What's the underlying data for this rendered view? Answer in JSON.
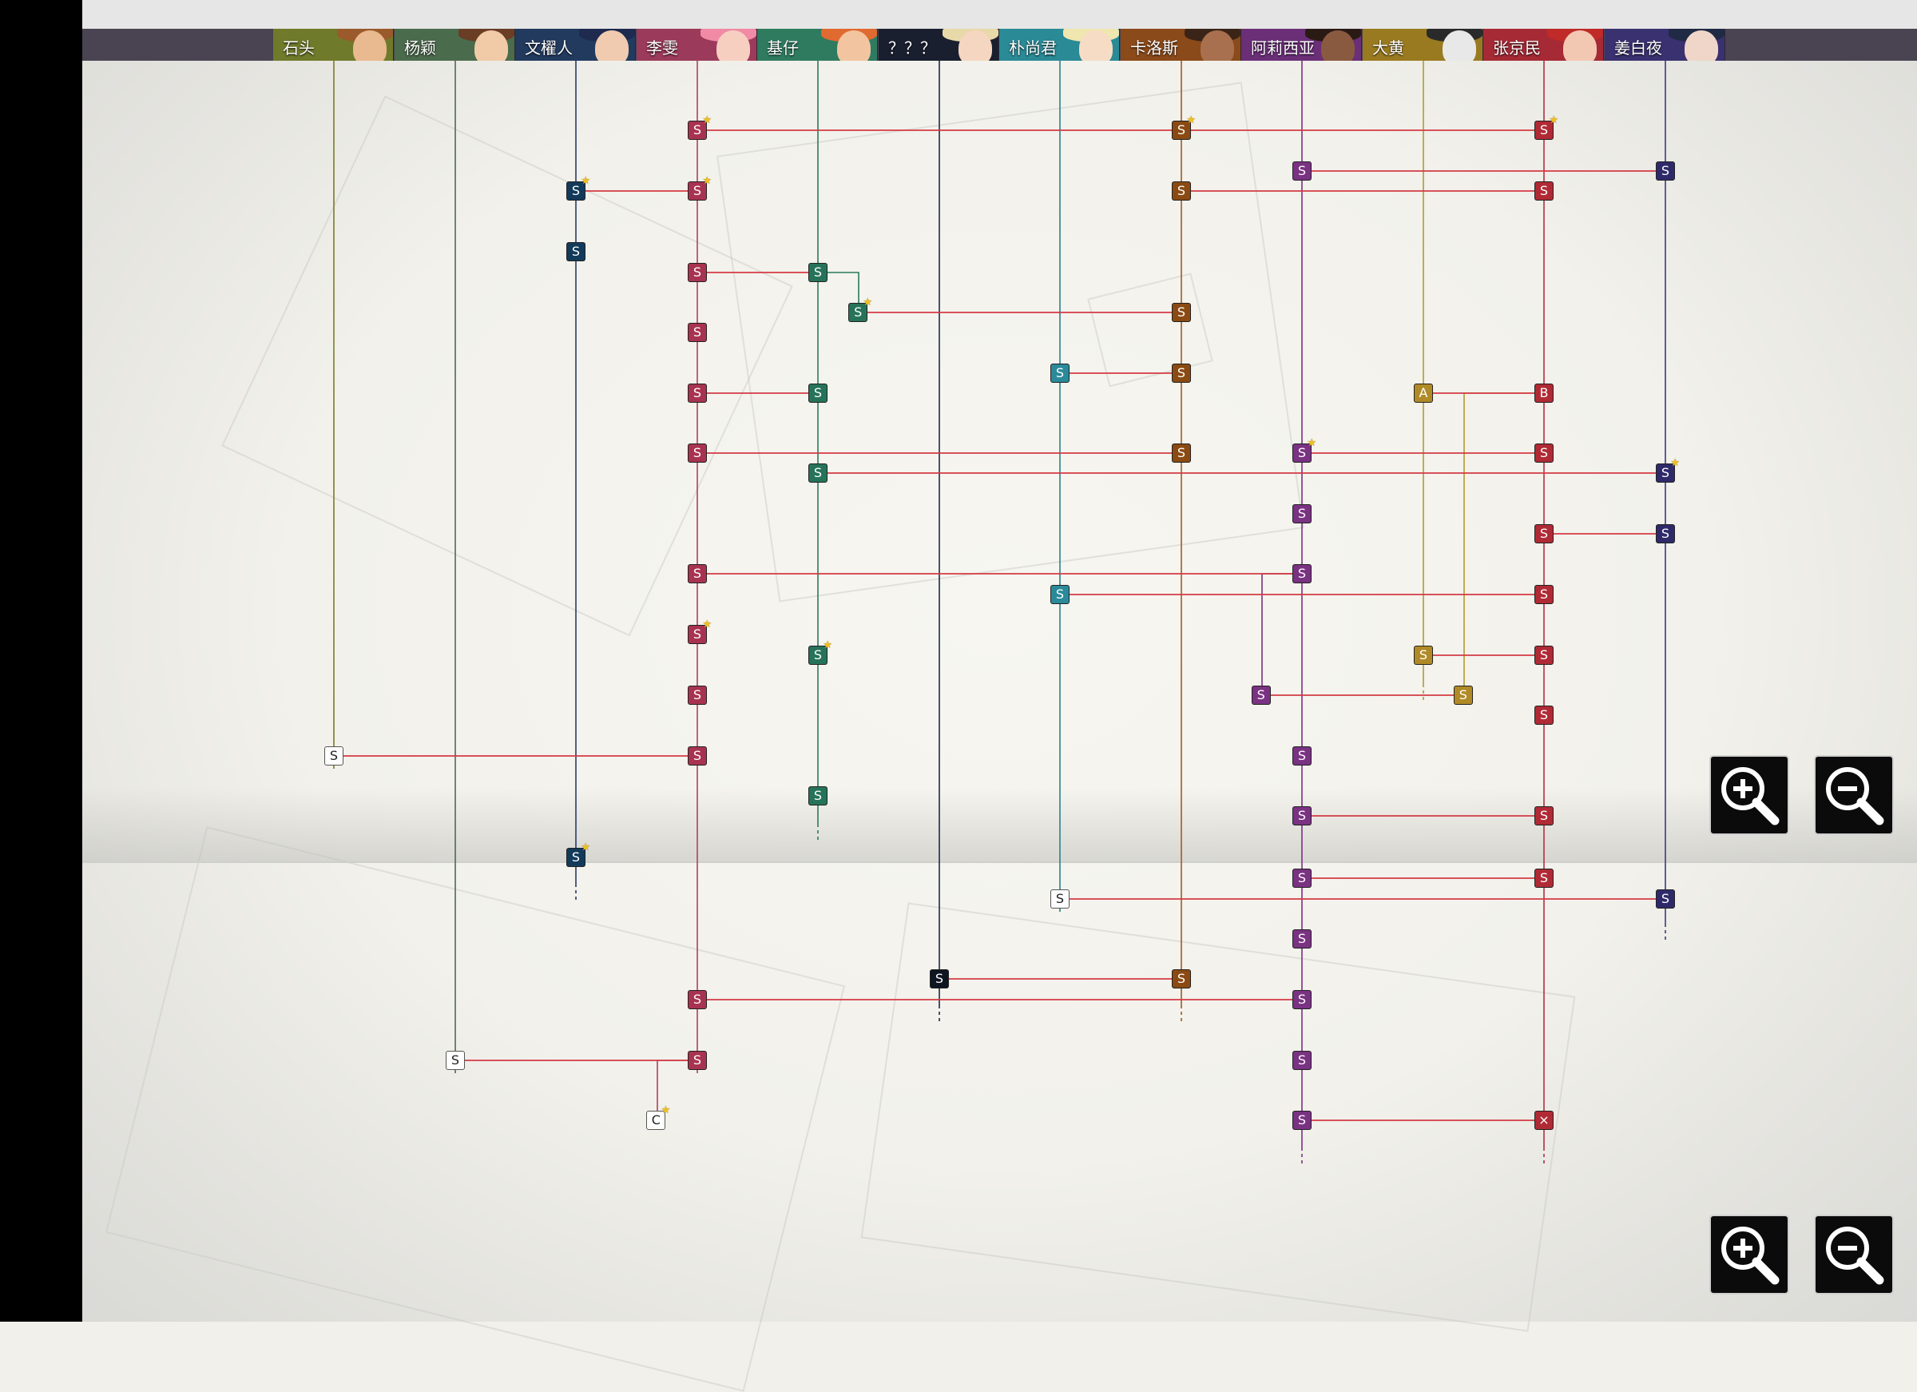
{
  "characters": [
    {
      "name": "石头",
      "color": "#6f7a2a",
      "face": "#e9b98f",
      "hair": "#9a5a2c"
    },
    {
      "name": "杨颖",
      "color": "#4b6b4d",
      "face": "#f1cba7",
      "hair": "#6a3d25"
    },
    {
      "name": "文櫂人",
      "color": "#223a5e",
      "face": "#f0cbb0",
      "hair": "#1e2a4e"
    },
    {
      "name": "李雯",
      "color": "#9b3a5a",
      "face": "#f7cfc0",
      "hair": "#f08aa5"
    },
    {
      "name": "基仔",
      "color": "#2f7b60",
      "face": "#f2c5a0",
      "hair": "#e06a30"
    },
    {
      "name": "？？？",
      "color": "#1a1f30",
      "face": "#f5d6c0",
      "hair": "#e8d9a8"
    },
    {
      "name": "朴尚君",
      "color": "#2a8a96",
      "face": "#f6dcc5",
      "hair": "#f0e6b0"
    },
    {
      "name": "卡洛斯",
      "color": "#8b4a1a",
      "face": "#a8704e",
      "hair": "#3a2418"
    },
    {
      "name": "阿莉西亚",
      "color": "#6b2f78",
      "face": "#8a5a40",
      "hair": "#2a1a14"
    },
    {
      "name": "大黄",
      "color": "#9a7a20",
      "face": "#e8e8e8",
      "hair": "#2a2a2a"
    },
    {
      "name": "张京民",
      "color": "#a52a35",
      "face": "#f3c8b3",
      "hair": "#c02a28"
    },
    {
      "name": "姜白夜",
      "color": "#3a3170",
      "face": "#f0d6c8",
      "hair": "#202a44"
    }
  ],
  "line_colors": {
    "stone": "#7a7a2a",
    "yang": "#4a6a58",
    "wen": "#2a3a6a",
    "li": "#b0405a",
    "jizai": "#2a7a5a",
    "unknown": "#1a2a4a",
    "pu": "#2a8090",
    "carlos": "#a05a20",
    "alicia": "#7a3080",
    "dahuang": "#b09a30",
    "zhang": "#b03040",
    "jiang": "#3a3a80",
    "connector": "#d43a44"
  },
  "node_colors": {
    "wen": "#123a5a",
    "li": "#a83350",
    "jizai": "#26735a",
    "unknown": "#0e1622",
    "pu": "#2a8a9a",
    "carlos": "#8a4a12",
    "alicia": "#7a3282",
    "dahuang": "#b08a26",
    "zhang": "#b02a35",
    "jiang": "#2e2a6a"
  },
  "nodes": [
    {
      "col": 3,
      "row": "r1",
      "label": "S",
      "star": true
    },
    {
      "col": 7,
      "row": "r1",
      "label": "S",
      "star": true
    },
    {
      "col": 10,
      "row": "r1",
      "label": "S",
      "star": true
    },
    {
      "col": 8,
      "row": "r2",
      "label": "S",
      "star": false
    },
    {
      "col": 11,
      "row": "r2",
      "label": "S",
      "star": false
    },
    {
      "col": 2,
      "row": "r3",
      "label": "S",
      "star": true
    },
    {
      "col": 3,
      "row": "r3",
      "label": "S",
      "star": true
    },
    {
      "col": 7,
      "row": "r3",
      "label": "S",
      "star": false
    },
    {
      "col": 10,
      "row": "r3",
      "label": "S",
      "star": false
    },
    {
      "col": 2,
      "row": "r4",
      "label": "S",
      "star": false
    },
    {
      "col": 3,
      "row": "r5",
      "label": "S",
      "star": false
    },
    {
      "col": 4,
      "row": "r5",
      "label": "S",
      "star": false
    },
    {
      "col": 4.33,
      "row": "r6",
      "label": "S",
      "star": true,
      "color": "jizai"
    },
    {
      "col": 7,
      "row": "r6",
      "label": "S",
      "star": false
    },
    {
      "col": 3,
      "row": "r7",
      "label": "S",
      "star": false
    },
    {
      "col": 6,
      "row": "r8",
      "label": "S",
      "star": false
    },
    {
      "col": 7,
      "row": "r8",
      "label": "S",
      "star": false
    },
    {
      "col": 3,
      "row": "r9",
      "label": "S",
      "star": false
    },
    {
      "col": 4,
      "row": "r9",
      "label": "S",
      "star": false
    },
    {
      "col": 9,
      "row": "r9",
      "label": "A",
      "star": false
    },
    {
      "col": 10,
      "row": "r9",
      "label": "B",
      "star": false
    },
    {
      "col": 3,
      "row": "r10",
      "label": "S",
      "star": false
    },
    {
      "col": 7,
      "row": "r10",
      "label": "S",
      "star": false
    },
    {
      "col": 8,
      "row": "r10",
      "label": "S",
      "star": true
    },
    {
      "col": 10,
      "row": "r10",
      "label": "S",
      "star": false
    },
    {
      "col": 4,
      "row": "r11",
      "label": "S",
      "star": false
    },
    {
      "col": 11,
      "row": "r11",
      "label": "S",
      "star": true
    },
    {
      "col": 8,
      "row": "r12",
      "label": "S",
      "star": false
    },
    {
      "col": 10,
      "row": "r13",
      "label": "S",
      "star": false
    },
    {
      "col": 11,
      "row": "r13",
      "label": "S",
      "star": false
    },
    {
      "col": 3,
      "row": "r14",
      "label": "S",
      "star": false
    },
    {
      "col": 8,
      "row": "r14",
      "label": "S",
      "star": false
    },
    {
      "col": 6,
      "row": "r15",
      "label": "S",
      "star": false
    },
    {
      "col": 10,
      "row": "r15",
      "label": "S",
      "star": false
    },
    {
      "col": 3,
      "row": "r16",
      "label": "S",
      "star": true
    },
    {
      "col": 4,
      "row": "r17",
      "label": "S",
      "star": true
    },
    {
      "col": 9,
      "row": "r17",
      "label": "S",
      "star": false
    },
    {
      "col": 10,
      "row": "r17",
      "label": "S",
      "star": false
    },
    {
      "col": 3,
      "row": "r18",
      "label": "S",
      "star": false
    },
    {
      "col": 7.66,
      "row": "r18",
      "label": "S",
      "star": false,
      "color": "alicia"
    },
    {
      "col": 9.33,
      "row": "r18",
      "label": "S",
      "star": false,
      "color": "dahuang"
    },
    {
      "col": 10,
      "row": "r19",
      "label": "S",
      "star": false
    },
    {
      "col": 0,
      "row": "r20",
      "label": "S",
      "star": false,
      "white": true
    },
    {
      "col": 3,
      "row": "r20",
      "label": "S",
      "star": false
    },
    {
      "col": 8,
      "row": "r20",
      "label": "S",
      "star": false
    },
    {
      "col": 4,
      "row": "r21",
      "label": "S",
      "star": false
    },
    {
      "col": 8,
      "row": "r22",
      "label": "S",
      "star": false
    },
    {
      "col": 10,
      "row": "r22",
      "label": "S",
      "star": false
    },
    {
      "col": 2,
      "row": "r23",
      "label": "S",
      "star": true
    },
    {
      "col": 8,
      "row": "r24",
      "label": "S",
      "star": false
    },
    {
      "col": 10,
      "row": "r24",
      "label": "S",
      "star": false
    },
    {
      "col": 6,
      "row": "r25",
      "label": "S",
      "star": false,
      "white": true
    },
    {
      "col": 11,
      "row": "r25",
      "label": "S",
      "star": false
    },
    {
      "col": 8,
      "row": "r26",
      "label": "S",
      "star": false
    },
    {
      "col": 5,
      "row": "r27",
      "label": "S",
      "star": false
    },
    {
      "col": 7,
      "row": "r27",
      "label": "S",
      "star": false
    },
    {
      "col": 3,
      "row": "r28",
      "label": "S",
      "star": false
    },
    {
      "col": 8,
      "row": "r28",
      "label": "S",
      "star": false
    },
    {
      "col": 1,
      "row": "r29",
      "label": "S",
      "star": false,
      "white": true
    },
    {
      "col": 3,
      "row": "r29",
      "label": "S",
      "star": false
    },
    {
      "col": 8,
      "row": "r29",
      "label": "S",
      "star": false
    },
    {
      "col": 2.66,
      "row": "r30",
      "label": "C",
      "star": true,
      "white": true
    },
    {
      "col": 8,
      "row": "r30",
      "label": "S",
      "star": false
    },
    {
      "col": 10,
      "row": "r30",
      "label": "×",
      "star": false
    }
  ],
  "connections": [
    {
      "a": [
        3,
        "r1"
      ],
      "b": [
        7,
        "r1"
      ]
    },
    {
      "a": [
        7,
        "r1"
      ],
      "b": [
        10,
        "r1"
      ]
    },
    {
      "a": [
        8,
        "r2"
      ],
      "b": [
        11,
        "r2"
      ]
    },
    {
      "a": [
        2,
        "r3"
      ],
      "b": [
        3,
        "r3"
      ]
    },
    {
      "a": [
        7,
        "r3"
      ],
      "b": [
        10,
        "r3"
      ]
    },
    {
      "a": [
        3,
        "r5"
      ],
      "b": [
        4,
        "r5"
      ]
    },
    {
      "a": [
        4.33,
        "r6"
      ],
      "b": [
        7,
        "r6"
      ]
    },
    {
      "a": [
        6,
        "r8"
      ],
      "b": [
        7,
        "r8"
      ]
    },
    {
      "a": [
        3,
        "r9"
      ],
      "b": [
        4,
        "r9"
      ]
    },
    {
      "a": [
        9,
        "r9"
      ],
      "b": [
        10,
        "r9"
      ]
    },
    {
      "a": [
        3,
        "r10"
      ],
      "b": [
        7,
        "r10"
      ]
    },
    {
      "a": [
        8,
        "r10"
      ],
      "b": [
        10,
        "r10"
      ]
    },
    {
      "a": [
        4,
        "r11"
      ],
      "b": [
        11,
        "r11"
      ]
    },
    {
      "a": [
        10,
        "r13"
      ],
      "b": [
        11,
        "r13"
      ]
    },
    {
      "a": [
        3,
        "r14"
      ],
      "b": [
        8,
        "r14"
      ]
    },
    {
      "a": [
        6,
        "r15"
      ],
      "b": [
        10,
        "r15"
      ]
    },
    {
      "a": [
        9,
        "r17"
      ],
      "b": [
        10,
        "r17"
      ]
    },
    {
      "a": [
        7.66,
        "r18"
      ],
      "b": [
        9.33,
        "r18"
      ]
    },
    {
      "a": [
        0,
        "r20"
      ],
      "b": [
        3,
        "r20"
      ]
    },
    {
      "a": [
        8,
        "r22"
      ],
      "b": [
        10,
        "r22"
      ]
    },
    {
      "a": [
        8,
        "r24"
      ],
      "b": [
        10,
        "r24"
      ]
    },
    {
      "a": [
        6,
        "r25"
      ],
      "b": [
        11,
        "r25"
      ]
    },
    {
      "a": [
        5,
        "r27"
      ],
      "b": [
        7,
        "r27"
      ]
    },
    {
      "a": [
        3,
        "r28"
      ],
      "b": [
        8,
        "r28"
      ]
    },
    {
      "a": [
        1,
        "r29"
      ],
      "b": [
        3,
        "r29"
      ]
    },
    {
      "a": [
        8,
        "r30"
      ],
      "b": [
        10,
        "r30"
      ]
    }
  ],
  "zoom_controls": {
    "zoom_in_label": "zoom-in",
    "zoom_out_label": "zoom-out"
  }
}
